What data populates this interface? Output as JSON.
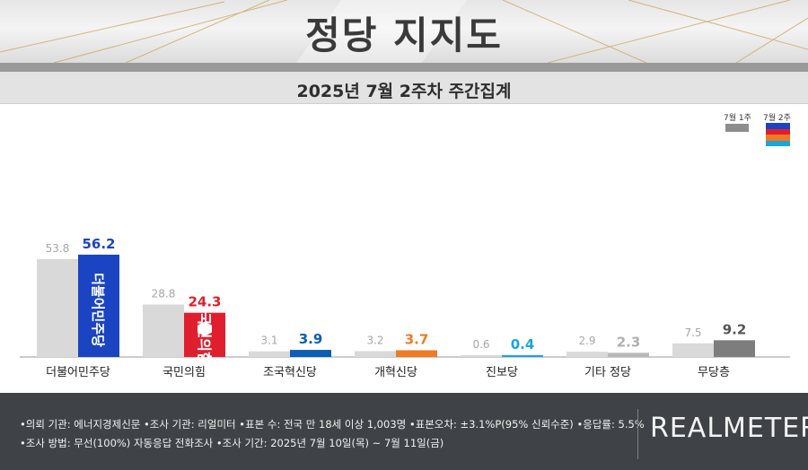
{
  "header": {
    "title": "정당 지지도",
    "subtitle": "2025년 7월 2주차 주간집계"
  },
  "legend": {
    "previous_label": "7월 1주",
    "current_label": "7월 2주",
    "previous_color": "#8d8d8d",
    "current_colors": [
      "#1a44c2",
      "#e01f2e",
      "#f07a22",
      "#1aa5dc"
    ]
  },
  "chart_data": {
    "type": "bar",
    "title": "정당 지지도",
    "subtitle": "2025년 7월 2주차 주간집계",
    "categories": [
      "더불어민주당",
      "국민의힘",
      "조국혁신당",
      "개혁신당",
      "진보당",
      "기타 정당",
      "무당층"
    ],
    "series": [
      {
        "name": "7월 1주",
        "values": [
          53.8,
          28.8,
          3.1,
          3.2,
          0.6,
          2.9,
          7.5
        ]
      },
      {
        "name": "7월 2주",
        "values": [
          56.2,
          24.3,
          3.9,
          3.7,
          0.4,
          2.3,
          9.2
        ]
      }
    ],
    "previous_value_labels": [
      "53.8",
      "28.8",
      "3.1",
      "3.2",
      "0.6",
      "2.9",
      "7.5"
    ],
    "current_value_labels": [
      "56.2",
      "24.3",
      "3.9",
      "3.7",
      "0.4",
      "2.3",
      "9.2"
    ],
    "current_colors": [
      "#1a44c2",
      "#e01f2e",
      "#0a5fb4",
      "#f07a22",
      "#1aa5dc",
      "#b8b8b8",
      "#7d7d7d"
    ],
    "current_label_colors": [
      "#1a44c2",
      "#e01f2e",
      "#0a5fb4",
      "#f07a22",
      "#1aa5dc",
      "#b0b0b0",
      "#555555"
    ],
    "previous_color": "#d9d9d9",
    "bar_logo_text": [
      "더불어민주당",
      "국민의힘"
    ],
    "xlabel": "",
    "ylabel": "",
    "grid": false
  },
  "footer": {
    "line1": "•의뢰 기관: 에너지경제신문  •조사 기관: 리얼미터 •표본 수: 전국 만 18세 이상 1,003명 •표본오차: ±3.1%P(95% 신뢰수준) •응답률: 5.5%",
    "line2": "•조사 방법: 무선(100%) 자동응답 전화조사  •조사 기간: 2025년 7월 10일(목) ~ 7월 11일(금)",
    "brand": "REALMETER"
  }
}
